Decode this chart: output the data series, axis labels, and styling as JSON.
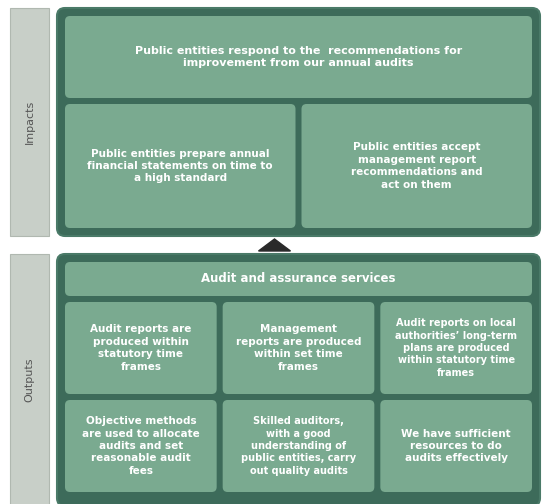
{
  "bg_color": "#ffffff",
  "outer_dark": "#3d6b5a",
  "outer_border": "#4a7a68",
  "cell_medium": "#7aaa90",
  "side_panel_color": "#c8cfc8",
  "side_panel_border": "#b0b8b0",
  "text_white": "#ffffff",
  "text_side": "#555555",
  "arrow_color": "#2a2a2a",
  "side_label_impacts": "Impacts",
  "side_label_outputs": "Outputs",
  "impacts_top_text": "Public entities respond to the  recommendations for\nimprovement from our annual audits",
  "impacts_left_text": "Public entities prepare annual\nfinancial statements on time to\na high standard",
  "impacts_right_text": "Public entities accept\nmanagement report\nrecommendations and\nact on them",
  "outputs_header_text": "Audit and assurance services",
  "outputs_cells": [
    "Audit reports are\nproduced within\nstatutory time\nframes",
    "Management\nreports are produced\nwithin set time\nframes",
    "Audit reports on local\nauthorities’ long-term\nplans are produced\nwithin statutory time\nframes",
    "Objective methods\nare used to allocate\naudits and set\nreasonable audit\nfees",
    "Skilled auditors,\nwith a good\nunderstanding of\npublic entities, carry\nout quality audits",
    "We have sufficient\nresources to do\naudits effectively"
  ]
}
